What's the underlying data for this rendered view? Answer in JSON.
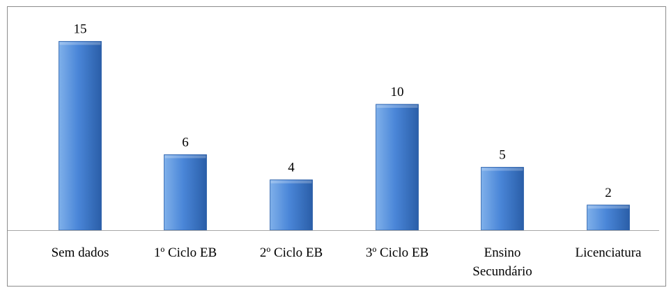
{
  "chart_data": {
    "type": "bar",
    "title": "",
    "xlabel": "",
    "ylabel": "",
    "categories": [
      [
        "Sem dados"
      ],
      [
        "1º Ciclo EB"
      ],
      [
        "2º Ciclo EB"
      ],
      [
        "3º Ciclo EB"
      ],
      [
        "Ensino",
        "Secundário"
      ],
      [
        "Licenciatura"
      ]
    ],
    "values": [
      15,
      6,
      4,
      10,
      5,
      2
    ],
    "ylim": [
      0,
      15
    ],
    "grid": false,
    "legend": "none",
    "colors": {
      "bar_light": "#7fb0ea",
      "bar_mid": "#4a86d8",
      "bar_dark": "#2a5ea8",
      "axis": "#a6a6a6"
    }
  }
}
